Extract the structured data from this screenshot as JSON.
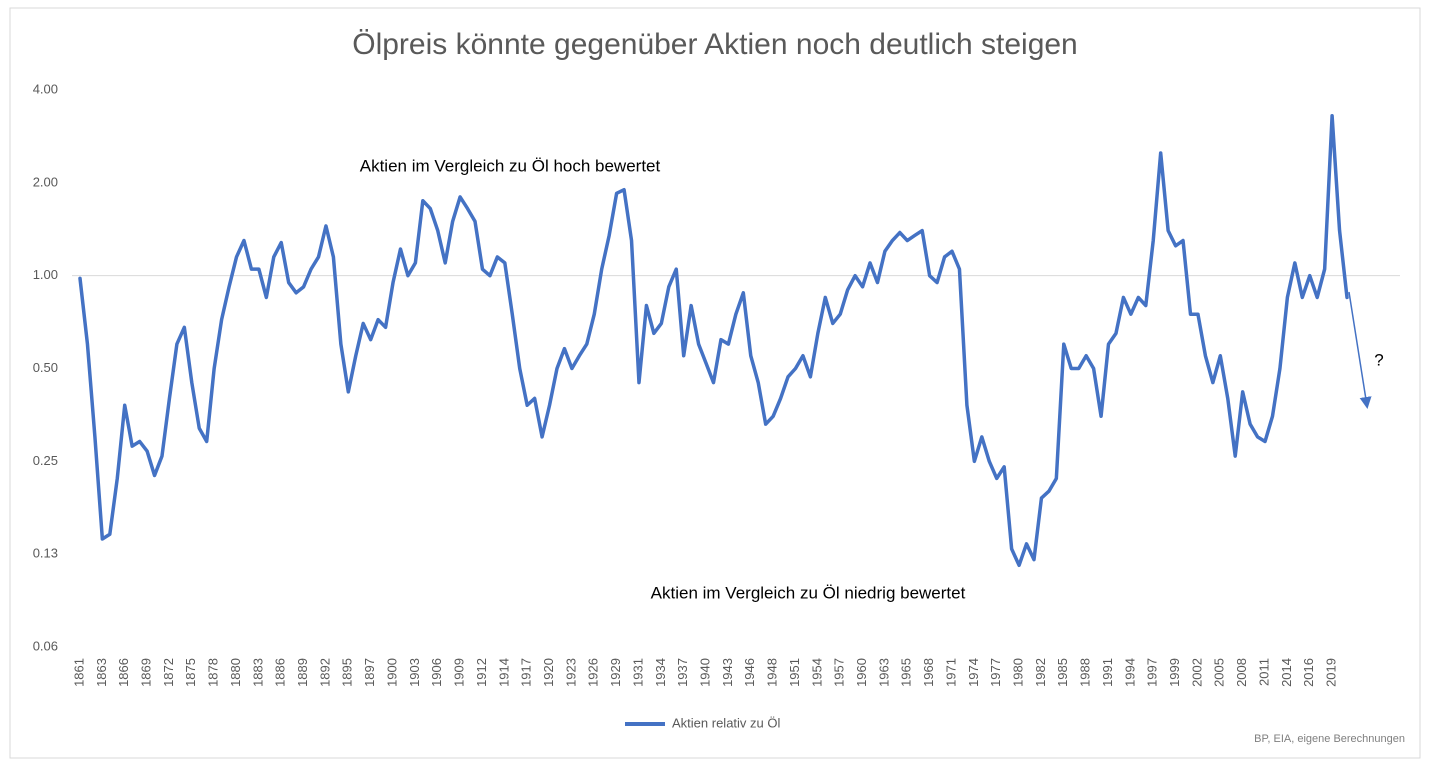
{
  "chart_data": {
    "type": "line",
    "title": "Ölpreis könnte gegenüber Aktien noch deutlich steigen",
    "log_scale": true,
    "reference_line": 1,
    "ylim": [
      0.0625,
      4
    ],
    "yticks": [
      {
        "value": 0.0625,
        "label": "0.06"
      },
      {
        "value": 0.125,
        "label": "0.13"
      },
      0.25,
      {
        "value": 0.5,
        "label": "0.50"
      },
      {
        "value": 1,
        "label": "1.00"
      },
      {
        "value": 2,
        "label": "2.00"
      },
      {
        "value": 4,
        "label": "4.00"
      }
    ],
    "categories": [
      "1861",
      null,
      null,
      "1863",
      null,
      null,
      "1866",
      null,
      null,
      "1869",
      null,
      null,
      "1872",
      null,
      null,
      "1875",
      null,
      null,
      "1878",
      null,
      null,
      "1880",
      null,
      null,
      "1883",
      null,
      null,
      "1886",
      null,
      null,
      "1889",
      null,
      null,
      "1892",
      null,
      null,
      "1895",
      null,
      null,
      "1897",
      null,
      null,
      "1900",
      null,
      null,
      "1903",
      null,
      null,
      "1906",
      null,
      null,
      "1909",
      null,
      null,
      "1912",
      null,
      null,
      "1914",
      null,
      null,
      "1917",
      null,
      null,
      "1920",
      null,
      null,
      "1923",
      null,
      null,
      "1926",
      null,
      null,
      "1929",
      null,
      null,
      "1931",
      null,
      null,
      "1934",
      null,
      null,
      "1937",
      null,
      null,
      "1940",
      null,
      null,
      "1943",
      null,
      null,
      "1946",
      null,
      null,
      "1948",
      null,
      null,
      "1951",
      null,
      null,
      "1954",
      null,
      null,
      "1957",
      null,
      null,
      "1960",
      null,
      null,
      "1963",
      null,
      null,
      "1965",
      null,
      null,
      "1968",
      null,
      null,
      "1971",
      null,
      null,
      "1974",
      null,
      null,
      "1977",
      null,
      null,
      "1980",
      null,
      null,
      "1982",
      null,
      null,
      "1985",
      null,
      null,
      "1988",
      null,
      null,
      "1991",
      null,
      null,
      "1994",
      null,
      null,
      "1997",
      null,
      null,
      "1999",
      null,
      null,
      "2002",
      null,
      null,
      "2005",
      null,
      null,
      "2008",
      null,
      null,
      "2011",
      null,
      null,
      "2014",
      null,
      null,
      "2016",
      null,
      null,
      "2019",
      null,
      null
    ],
    "series": [
      {
        "name": "Aktien relativ zu Öl",
        "color": "#4472c4",
        "values": [
          0.98,
          0.6,
          0.3,
          0.14,
          0.145,
          0.22,
          0.38,
          0.28,
          0.29,
          0.27,
          0.225,
          0.26,
          0.4,
          0.6,
          0.68,
          0.45,
          0.32,
          0.29,
          0.5,
          0.72,
          0.92,
          1.15,
          1.3,
          1.05,
          1.05,
          0.85,
          1.15,
          1.28,
          0.95,
          0.88,
          0.92,
          1.05,
          1.15,
          1.45,
          1.15,
          0.6,
          0.42,
          0.55,
          0.7,
          0.62,
          0.72,
          0.68,
          0.95,
          1.22,
          1.0,
          1.1,
          1.75,
          1.65,
          1.4,
          1.1,
          1.5,
          1.8,
          1.65,
          1.5,
          1.05,
          1.0,
          1.15,
          1.1,
          0.75,
          0.5,
          0.38,
          0.4,
          0.3,
          0.38,
          0.5,
          0.58,
          0.5,
          0.55,
          0.6,
          0.75,
          1.05,
          1.35,
          1.85,
          1.9,
          1.3,
          0.45,
          0.8,
          0.65,
          0.7,
          0.92,
          1.05,
          0.55,
          0.8,
          0.6,
          0.52,
          0.45,
          0.62,
          0.6,
          0.75,
          0.88,
          0.55,
          0.45,
          0.33,
          0.35,
          0.4,
          0.47,
          0.5,
          0.55,
          0.47,
          0.65,
          0.85,
          0.7,
          0.75,
          0.9,
          1.0,
          0.92,
          1.1,
          0.95,
          1.2,
          1.3,
          1.38,
          1.3,
          1.35,
          1.4,
          1.0,
          0.95,
          1.15,
          1.2,
          1.05,
          0.38,
          0.25,
          0.3,
          0.25,
          0.22,
          0.24,
          0.13,
          0.115,
          0.135,
          0.12,
          0.19,
          0.2,
          0.22,
          0.6,
          0.5,
          0.5,
          0.55,
          0.5,
          0.35,
          0.6,
          0.65,
          0.85,
          0.75,
          0.85,
          0.8,
          1.3,
          2.5,
          1.4,
          1.25,
          1.3,
          0.75,
          0.75,
          0.55,
          0.45,
          0.55,
          0.4,
          0.26,
          0.42,
          0.33,
          0.3,
          0.29,
          0.35,
          0.5,
          0.85,
          1.1,
          0.85,
          1.0,
          0.85,
          1.05,
          3.3,
          1.4,
          0.85
        ]
      }
    ],
    "annotations": [
      "Aktien im Vergleich zu Öl hoch bewertet",
      "Aktien im Vergleich zu Öl niedrig bewertet",
      "?"
    ],
    "source": "BP, EIA, eigene Berechnungen"
  }
}
